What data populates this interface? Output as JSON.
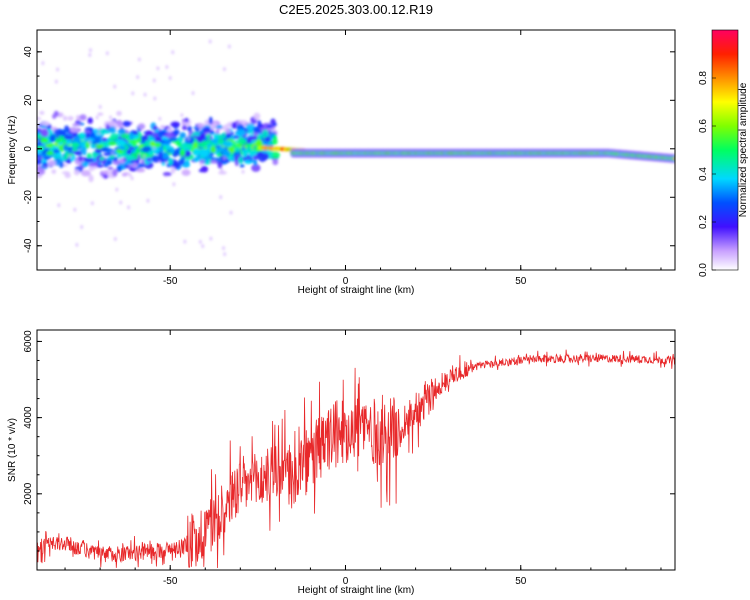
{
  "title": "C2E5.2025.303.00.12.R19",
  "chart_data": [
    {
      "type": "heatmap",
      "title": "C2E5.2025.303.00.12.R19",
      "xlabel": "Height of straight line (km)",
      "ylabel": "Frequency (Hz)",
      "xlim": [
        -88,
        94
      ],
      "ylim": [
        -50,
        49
      ],
      "xticks": [
        "-50",
        "0",
        "50"
      ],
      "yticks": [
        "-40",
        "-20",
        "0",
        "20",
        "40"
      ],
      "description": "Spectral amplitude vs height: scattered broadband energy near 0 Hz below about -20 km, narrowing to a strong line near -2 Hz above -20 km",
      "colorbar": {
        "label": "Normalized spectral amplitude",
        "range": [
          0,
          1
        ],
        "ticks": [
          "0.0",
          "0.2",
          "0.4",
          "0.6",
          "0.8"
        ]
      }
    },
    {
      "type": "line",
      "xlabel": "Height of straight line (km)",
      "ylabel": "SNR (10 * v/v)",
      "xlim": [
        -88,
        94
      ],
      "ylim": [
        0,
        6300
      ],
      "xticks": [
        "-50",
        "0",
        "50"
      ],
      "yticks": [
        "2000",
        "4000",
        "6000"
      ],
      "line_color": "#e8282a",
      "series": [
        {
          "name": "SNR",
          "x": [
            -88,
            -80,
            -70,
            -60,
            -50,
            -45,
            -40,
            -35,
            -30,
            -25,
            -20,
            -15,
            -10,
            -5,
            0,
            5,
            10,
            15,
            20,
            25,
            30,
            35,
            40,
            50,
            60,
            70,
            80,
            94
          ],
          "values": [
            600,
            700,
            400,
            450,
            550,
            700,
            1000,
            1600,
            2200,
            2300,
            2600,
            2500,
            2900,
            3400,
            3700,
            3800,
            3500,
            3700,
            4200,
            4600,
            5100,
            5300,
            5400,
            5500,
            5550,
            5550,
            5550,
            5500
          ]
        }
      ]
    }
  ]
}
